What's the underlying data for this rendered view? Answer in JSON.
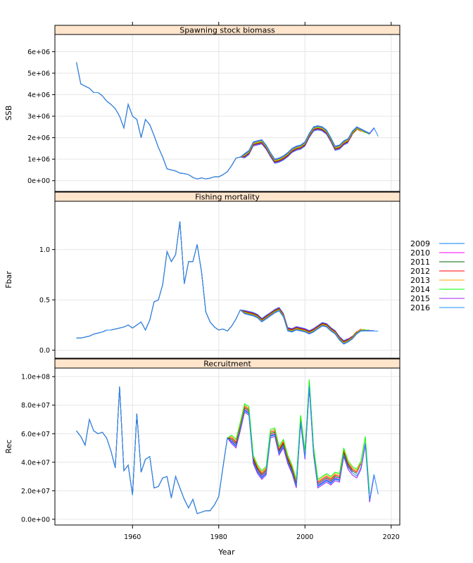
{
  "chart_data": {
    "type": "line",
    "xlabel": "Year",
    "x_ticks": [
      1960,
      1980,
      2000,
      2020
    ],
    "xlim": [
      1942,
      2022
    ],
    "legend": {
      "placement": "right",
      "entries": [
        "2009",
        "2010",
        "2011",
        "2012",
        "2013",
        "2014",
        "2015",
        "2016"
      ],
      "colors": [
        "#0080ff",
        "#ff00ff",
        "#006400",
        "#ff0000",
        "#ffa500",
        "#00ff00",
        "#a020f0",
        "#1e90ff"
      ]
    },
    "panels": [
      {
        "title": "Spawning stock biomass",
        "ylabel": "SSB",
        "ylim": [
          -500000,
          6800000
        ],
        "y_ticks": [
          0,
          1000000,
          2000000,
          3000000,
          4000000,
          5000000,
          6000000
        ],
        "y_tick_labels": [
          "0e+00",
          "1e+06",
          "2e+06",
          "3e+06",
          "4e+06",
          "5e+06",
          "6e+06"
        ],
        "history": [
          [
            1947,
            5500000
          ],
          [
            1948,
            4500000
          ],
          [
            1949,
            4400000
          ],
          [
            1950,
            4300000
          ],
          [
            1951,
            4100000
          ],
          [
            1952,
            4100000
          ],
          [
            1953,
            3950000
          ],
          [
            1954,
            3700000
          ],
          [
            1955,
            3550000
          ],
          [
            1956,
            3350000
          ],
          [
            1957,
            3000000
          ],
          [
            1958,
            2450000
          ],
          [
            1959,
            3550000
          ],
          [
            1960,
            3000000
          ],
          [
            1961,
            2850000
          ],
          [
            1962,
            2000000
          ],
          [
            1963,
            2850000
          ],
          [
            1964,
            2600000
          ],
          [
            1965,
            2100000
          ],
          [
            1966,
            1550000
          ],
          [
            1967,
            1100000
          ],
          [
            1968,
            550000
          ],
          [
            1969,
            500000
          ],
          [
            1970,
            450000
          ],
          [
            1971,
            350000
          ],
          [
            1972,
            330000
          ],
          [
            1973,
            280000
          ],
          [
            1974,
            150000
          ],
          [
            1975,
            80000
          ],
          [
            1976,
            130000
          ],
          [
            1977,
            80000
          ],
          [
            1978,
            120000
          ],
          [
            1979,
            180000
          ],
          [
            1980,
            180000
          ],
          [
            1981,
            280000
          ],
          [
            1982,
            420000
          ],
          [
            1983,
            700000
          ],
          [
            1984,
            1050000
          ],
          [
            1985,
            1100000
          ]
        ],
        "recent_years": [
          1985,
          1986,
          1987,
          1988,
          1989,
          1990,
          1991,
          1992,
          1993,
          1994,
          1995,
          1996,
          1997,
          1998,
          1999,
          2000,
          2001,
          2002,
          2003,
          2004,
          2005,
          2006,
          2007,
          2008,
          2009,
          2010,
          2011,
          2012,
          2013,
          2014,
          2015,
          2016,
          2017
        ],
        "recent_base": [
          1100000,
          1150000,
          1300000,
          1700000,
          1750000,
          1800000,
          1550000,
          1200000,
          900000,
          950000,
          1050000,
          1200000,
          1400000,
          1500000,
          1550000,
          1700000,
          2100000,
          2400000,
          2450000,
          2400000,
          2250000,
          1900000,
          1500000,
          1550000,
          1750000,
          1850000,
          2200000,
          2400000,
          2300000,
          2200000,
          2100000,
          2350000,
          1950000
        ],
        "run_offsets": [
          -90000,
          -60000,
          -30000,
          0,
          20000,
          50000,
          80000,
          110000
        ],
        "run_ends": [
          2010,
          2011,
          2012,
          2013,
          2014,
          2015,
          2016,
          2017
        ]
      },
      {
        "title": "Fishing mortality",
        "ylabel": "Fbar",
        "ylim": [
          -0.08,
          1.48
        ],
        "y_ticks": [
          0,
          0.5,
          1
        ],
        "y_tick_labels": [
          "0.0",
          "0.5",
          "1.0"
        ],
        "history": [
          [
            1947,
            0.12
          ],
          [
            1948,
            0.12
          ],
          [
            1949,
            0.13
          ],
          [
            1950,
            0.14
          ],
          [
            1951,
            0.16
          ],
          [
            1952,
            0.17
          ],
          [
            1953,
            0.18
          ],
          [
            1954,
            0.2
          ],
          [
            1955,
            0.2
          ],
          [
            1956,
            0.21
          ],
          [
            1957,
            0.22
          ],
          [
            1958,
            0.23
          ],
          [
            1959,
            0.25
          ],
          [
            1960,
            0.22
          ],
          [
            1961,
            0.25
          ],
          [
            1962,
            0.28
          ],
          [
            1963,
            0.2
          ],
          [
            1964,
            0.3
          ],
          [
            1965,
            0.48
          ],
          [
            1966,
            0.5
          ],
          [
            1967,
            0.65
          ],
          [
            1968,
            0.98
          ],
          [
            1969,
            0.88
          ],
          [
            1970,
            0.95
          ],
          [
            1971,
            1.28
          ],
          [
            1972,
            0.66
          ],
          [
            1973,
            0.88
          ],
          [
            1974,
            0.88
          ],
          [
            1975,
            1.05
          ],
          [
            1976,
            0.78
          ],
          [
            1977,
            0.38
          ],
          [
            1978,
            0.28
          ],
          [
            1979,
            0.23
          ],
          [
            1980,
            0.2
          ],
          [
            1981,
            0.21
          ],
          [
            1982,
            0.19
          ],
          [
            1983,
            0.24
          ],
          [
            1984,
            0.31
          ],
          [
            1985,
            0.4
          ]
        ],
        "recent_years": [
          1985,
          1986,
          1987,
          1988,
          1989,
          1990,
          1991,
          1992,
          1993,
          1994,
          1995,
          1996,
          1997,
          1998,
          1999,
          2000,
          2001,
          2002,
          2003,
          2004,
          2005,
          2006,
          2007,
          2008,
          2009,
          2010,
          2011,
          2012,
          2013,
          2014,
          2015,
          2016,
          2017
        ],
        "recent_base": [
          0.4,
          0.38,
          0.37,
          0.36,
          0.34,
          0.3,
          0.33,
          0.36,
          0.39,
          0.41,
          0.35,
          0.21,
          0.2,
          0.22,
          0.21,
          0.2,
          0.18,
          0.2,
          0.23,
          0.26,
          0.25,
          0.21,
          0.18,
          0.12,
          0.08,
          0.1,
          0.13,
          0.18,
          0.21,
          0.21,
          0.21,
          0.21,
          0.21
        ],
        "run_offsets": [
          0.015,
          0.01,
          0.005,
          0,
          -0.005,
          -0.01,
          -0.015,
          -0.02
        ],
        "run_ends": [
          2010,
          2011,
          2012,
          2013,
          2014,
          2015,
          2016,
          2017
        ]
      },
      {
        "title": "Recruitment",
        "ylabel": "Rec",
        "ylim": [
          -4000000,
          106000000
        ],
        "y_ticks": [
          0,
          20000000,
          40000000,
          60000000,
          80000000,
          100000000
        ],
        "y_tick_labels": [
          "0.0e+00",
          "2.0e+07",
          "4.0e+07",
          "6.0e+07",
          "8.0e+07",
          "1.0e+08"
        ],
        "history": [
          [
            1947,
            62000000
          ],
          [
            1948,
            58000000
          ],
          [
            1949,
            52000000
          ],
          [
            1950,
            70000000
          ],
          [
            1951,
            62000000
          ],
          [
            1952,
            60000000
          ],
          [
            1953,
            61000000
          ],
          [
            1954,
            57000000
          ],
          [
            1955,
            48000000
          ],
          [
            1956,
            36000000
          ],
          [
            1957,
            93000000
          ],
          [
            1958,
            34000000
          ],
          [
            1959,
            38000000
          ],
          [
            1960,
            17000000
          ],
          [
            1961,
            74000000
          ],
          [
            1962,
            33000000
          ],
          [
            1963,
            42000000
          ],
          [
            1964,
            44000000
          ],
          [
            1965,
            22000000
          ],
          [
            1966,
            23000000
          ],
          [
            1967,
            29000000
          ],
          [
            1968,
            30000000
          ],
          [
            1969,
            15000000
          ],
          [
            1970,
            30000000
          ],
          [
            1971,
            22000000
          ],
          [
            1972,
            14000000
          ],
          [
            1973,
            8000000
          ],
          [
            1974,
            14000000
          ],
          [
            1975,
            4000000
          ],
          [
            1976,
            5000000
          ],
          [
            1977,
            6000000
          ],
          [
            1978,
            6000000
          ],
          [
            1979,
            10000000
          ],
          [
            1980,
            16000000
          ],
          [
            1981,
            37000000
          ],
          [
            1982,
            57000000
          ]
        ],
        "recent_years": [
          1982,
          1983,
          1984,
          1985,
          1986,
          1987,
          1988,
          1989,
          1990,
          1991,
          1992,
          1993,
          1994,
          1995,
          1996,
          1997,
          1998,
          1999,
          2000,
          2001,
          2002,
          2003,
          2004,
          2005,
          2006,
          2007,
          2008,
          2009,
          2010,
          2011,
          2012,
          2013,
          2014,
          2015,
          2016,
          2017
        ],
        "recent_base": [
          57000000,
          56000000,
          53000000,
          65000000,
          78000000,
          76000000,
          42000000,
          35000000,
          31000000,
          34000000,
          60000000,
          61000000,
          48000000,
          53000000,
          42000000,
          35000000,
          25000000,
          70000000,
          45000000,
          95000000,
          48000000,
          25000000,
          27000000,
          29000000,
          27000000,
          30000000,
          29000000,
          47000000,
          38000000,
          34000000,
          32000000,
          38000000,
          55000000,
          15000000,
          33000000,
          19000000
        ],
        "run_offsets": [
          -2000000,
          -1000000,
          0,
          1000000,
          2000000,
          3000000,
          -3000000,
          -1500000
        ],
        "run_ends": [
          2010,
          2011,
          2012,
          2013,
          2014,
          2015,
          2016,
          2017
        ]
      }
    ]
  }
}
